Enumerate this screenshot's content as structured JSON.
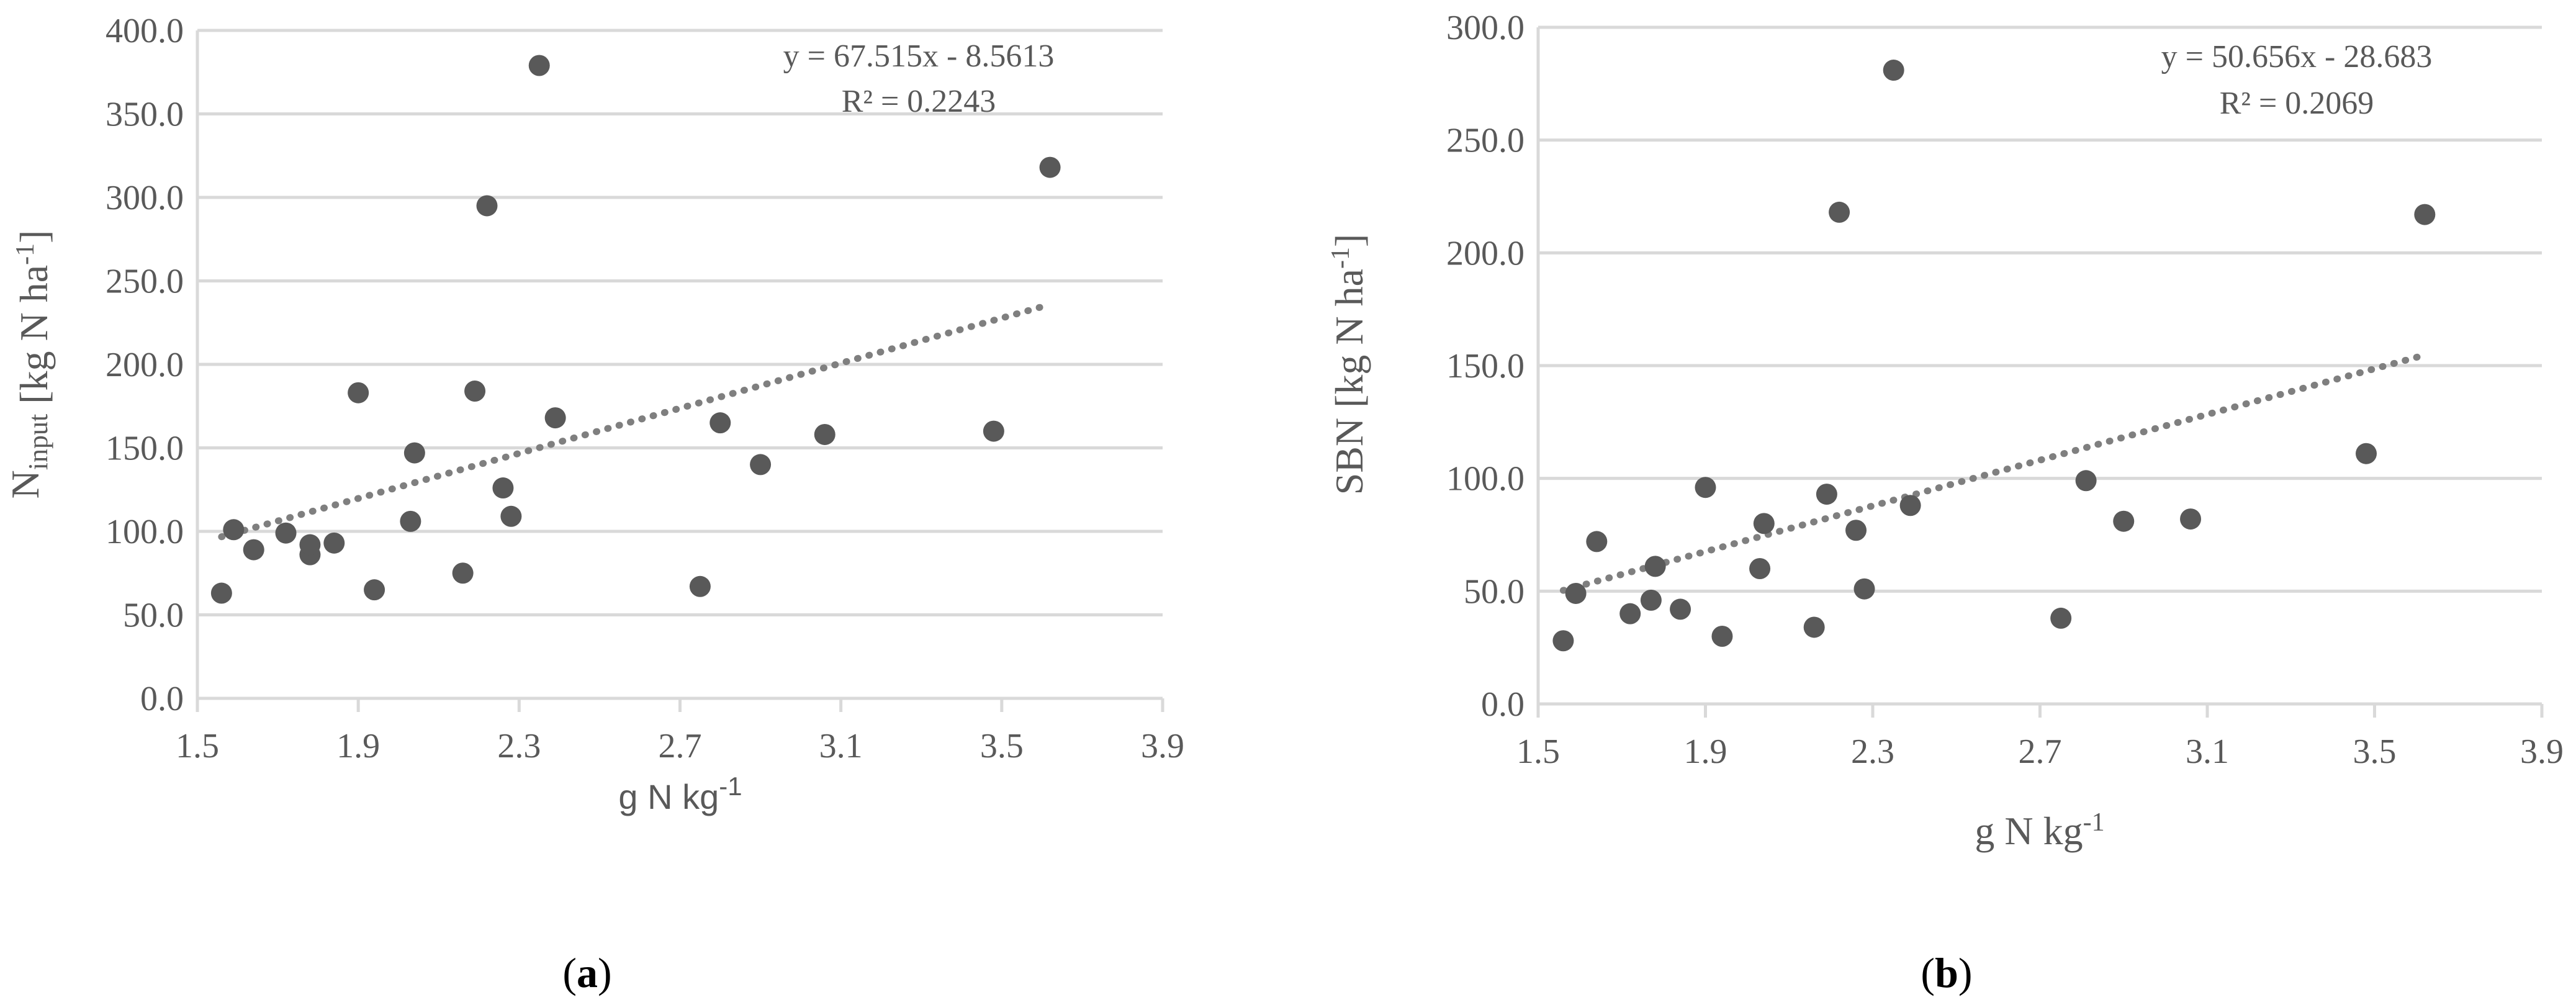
{
  "chart_data": [
    {
      "type": "scatter",
      "panel_label": "a",
      "xlabel": "g N kg-1",
      "ylabel": "Ninput [kg N ha-1]",
      "xlim": [
        1.5,
        3.9
      ],
      "ylim": [
        0,
        400
      ],
      "x_ticks": [
        "1.5",
        "1.9",
        "2.3",
        "2.7",
        "3.1",
        "3.5",
        "3.9"
      ],
      "y_ticks": [
        "0.0",
        "50.0",
        "100.0",
        "150.0",
        "200.0",
        "250.0",
        "300.0",
        "350.0",
        "400.0"
      ],
      "grid": "horizontal",
      "trendline": {
        "equation": "y = 67.515x - 8.5613",
        "r_squared": "R² = 0.2243",
        "slope": 67.515,
        "intercept": -8.5613,
        "x_range": [
          1.56,
          3.62
        ]
      },
      "series": [
        {
          "points": [
            [
              1.56,
              63
            ],
            [
              1.59,
              101
            ],
            [
              1.64,
              89
            ],
            [
              1.72,
              99
            ],
            [
              1.78,
              86
            ],
            [
              1.78,
              92
            ],
            [
              1.84,
              93
            ],
            [
              1.9,
              183
            ],
            [
              1.94,
              65
            ],
            [
              2.03,
              106
            ],
            [
              2.04,
              147
            ],
            [
              2.16,
              75
            ],
            [
              2.19,
              184
            ],
            [
              2.22,
              295
            ],
            [
              2.26,
              126
            ],
            [
              2.28,
              109
            ],
            [
              2.35,
              379
            ],
            [
              2.39,
              168
            ],
            [
              2.75,
              67
            ],
            [
              2.8,
              165
            ],
            [
              2.9,
              140
            ],
            [
              3.06,
              158
            ],
            [
              3.48,
              160
            ],
            [
              3.62,
              318
            ]
          ]
        }
      ]
    },
    {
      "type": "scatter",
      "panel_label": "b",
      "xlabel": "g N kg-1",
      "ylabel": "SBN [kg N ha-1]",
      "xlim": [
        1.5,
        3.9
      ],
      "ylim": [
        0,
        300
      ],
      "x_ticks": [
        "1.5",
        "1.9",
        "2.3",
        "2.7",
        "3.1",
        "3.5",
        "3.9"
      ],
      "y_ticks": [
        "0.0",
        "50.0",
        "100.0",
        "150.0",
        "200.0",
        "250.0",
        "300.0"
      ],
      "grid": "horizontal",
      "trendline": {
        "equation": "y = 50.656x - 28.683",
        "r_squared": "R² = 0.2069",
        "slope": 50.656,
        "intercept": -28.683,
        "x_range": [
          1.56,
          3.62
        ]
      },
      "series": [
        {
          "points": [
            [
              1.56,
              28
            ],
            [
              1.59,
              49
            ],
            [
              1.64,
              72
            ],
            [
              1.72,
              40
            ],
            [
              1.77,
              46
            ],
            [
              1.78,
              61
            ],
            [
              1.84,
              42
            ],
            [
              1.9,
              96
            ],
            [
              1.94,
              30
            ],
            [
              2.03,
              60
            ],
            [
              2.04,
              80
            ],
            [
              2.16,
              34
            ],
            [
              2.19,
              93
            ],
            [
              2.22,
              218
            ],
            [
              2.26,
              77
            ],
            [
              2.28,
              51
            ],
            [
              2.35,
              281
            ],
            [
              2.39,
              88
            ],
            [
              2.75,
              38
            ],
            [
              2.81,
              99
            ],
            [
              2.9,
              81
            ],
            [
              3.06,
              82
            ],
            [
              3.48,
              111
            ],
            [
              3.62,
              217
            ]
          ]
        }
      ]
    }
  ]
}
